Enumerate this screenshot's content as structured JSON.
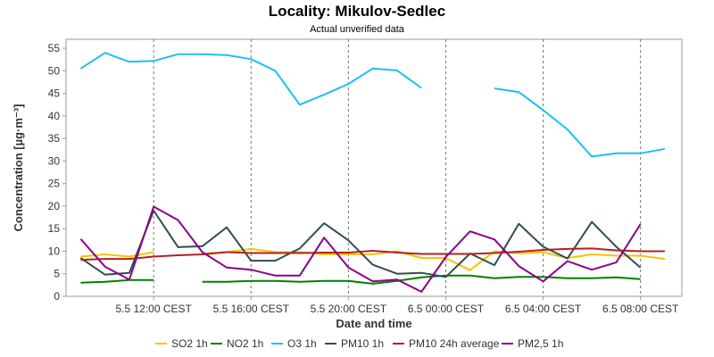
{
  "chart_data": {
    "type": "line",
    "title": "Locality: Mikulov-Sedlec",
    "subtitle": "Actual unverified data",
    "xlabel": "Date and time",
    "ylabel": "Concentration [µg·m⁻³]",
    "ylim": [
      0,
      57
    ],
    "yticks": [
      0,
      5,
      10,
      15,
      20,
      25,
      30,
      35,
      40,
      45,
      50,
      55
    ],
    "x_ticks": [
      "5.5 12:00 CEST",
      "5.5 16:00 CEST",
      "5.5 20:00 CEST",
      "6.5 00:00 CEST",
      "6.5 04:00 CEST",
      "6.5 08:00 CEST"
    ],
    "x_tick_hours": [
      3,
      7,
      11,
      15,
      19,
      23
    ],
    "xlim_hours": [
      -0.6,
      24.7
    ],
    "x_hours": [
      0,
      1,
      2,
      3,
      4,
      5,
      6,
      7,
      8,
      9,
      10,
      11,
      12,
      13,
      14,
      15,
      16,
      17,
      18,
      19,
      20,
      21,
      22,
      23,
      24
    ],
    "grid": true,
    "legend_position": "bottom",
    "series": [
      {
        "name": "SO2 1h",
        "color": "#f5c400",
        "values": [
          8.8,
          9.3,
          8.8,
          9.8,
          null,
          9.5,
          9.8,
          10.5,
          9.8,
          9.8,
          9.3,
          9.3,
          9.3,
          10.0,
          8.5,
          8.5,
          5.8,
          10.0,
          9.5,
          9.8,
          8.5,
          9.3,
          9.0,
          9.0,
          8.3
        ]
      },
      {
        "name": "NO2 1h",
        "color": "#008000",
        "values": [
          3.0,
          3.2,
          3.6,
          3.6,
          null,
          3.2,
          3.2,
          3.4,
          3.4,
          3.2,
          3.4,
          3.4,
          2.8,
          3.4,
          4.2,
          4.6,
          4.6,
          4.0,
          4.3,
          4.3,
          4.0,
          4.0,
          4.2,
          3.8,
          null
        ]
      },
      {
        "name": "O3 1h",
        "color": "#1ec0f0",
        "values": [
          50.5,
          54.0,
          52.0,
          52.2,
          53.7,
          53.7,
          53.5,
          52.6,
          50.0,
          42.5,
          44.7,
          47.1,
          50.5,
          50.1,
          46.2,
          null,
          null,
          46.1,
          45.3,
          41.3,
          37.0,
          31.0,
          31.7,
          31.7,
          32.7
        ]
      },
      {
        "name": "PM10 1h",
        "color": "#2f4f4f",
        "values": [
          8.5,
          4.8,
          5.2,
          19.0,
          10.9,
          11.1,
          15.3,
          7.9,
          7.9,
          10.6,
          16.2,
          12.4,
          7.0,
          5.0,
          5.2,
          4.3,
          9.5,
          6.9,
          16.1,
          11.0,
          8.4,
          16.5,
          11.0,
          6.4,
          null
        ]
      },
      {
        "name": "PM10 24h average",
        "color": "#b22222",
        "values": [
          8.1,
          8.3,
          8.3,
          8.8,
          9.1,
          9.3,
          9.8,
          9.6,
          9.6,
          9.6,
          9.7,
          9.7,
          10.1,
          9.7,
          9.4,
          9.4,
          9.4,
          9.6,
          9.9,
          10.3,
          10.5,
          10.6,
          10.2,
          10.0,
          10.0
        ]
      },
      {
        "name": "PM2,5 1h",
        "color": "#8b008b",
        "values": [
          12.7,
          6.6,
          3.7,
          19.9,
          16.9,
          9.8,
          6.4,
          5.9,
          4.6,
          4.6,
          13.0,
          6.4,
          3.3,
          3.7,
          1.0,
          8.7,
          14.4,
          12.6,
          6.7,
          3.3,
          7.8,
          5.9,
          7.5,
          16.0,
          null
        ]
      }
    ]
  }
}
